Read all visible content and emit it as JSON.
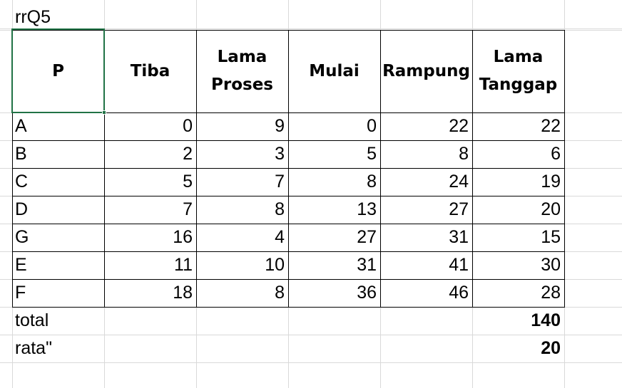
{
  "sheet": {
    "title_cell": "rrQ5",
    "headers": [
      "P",
      "Tiba",
      "Lama\nProses",
      "Mulai",
      "Rampung",
      "Lama\nTanggap"
    ],
    "rows": [
      [
        "A",
        "0",
        "9",
        "0",
        "22",
        "22"
      ],
      [
        "B",
        "2",
        "3",
        "5",
        "8",
        "6"
      ],
      [
        "C",
        "5",
        "7",
        "8",
        "24",
        "19"
      ],
      [
        "D",
        "7",
        "8",
        "13",
        "27",
        "20"
      ],
      [
        "G",
        "16",
        "4",
        "27",
        "31",
        "15"
      ],
      [
        "E",
        "11",
        "10",
        "31",
        "41",
        "30"
      ],
      [
        "F",
        "18",
        "8",
        "36",
        "46",
        "28"
      ]
    ],
    "summary": [
      {
        "label": "total",
        "value": "140"
      },
      {
        "label": "rata\"",
        "value": "20"
      }
    ]
  },
  "colors": {
    "gridline": "#d9d9d9",
    "border": "#000000",
    "selection": "#217346"
  }
}
